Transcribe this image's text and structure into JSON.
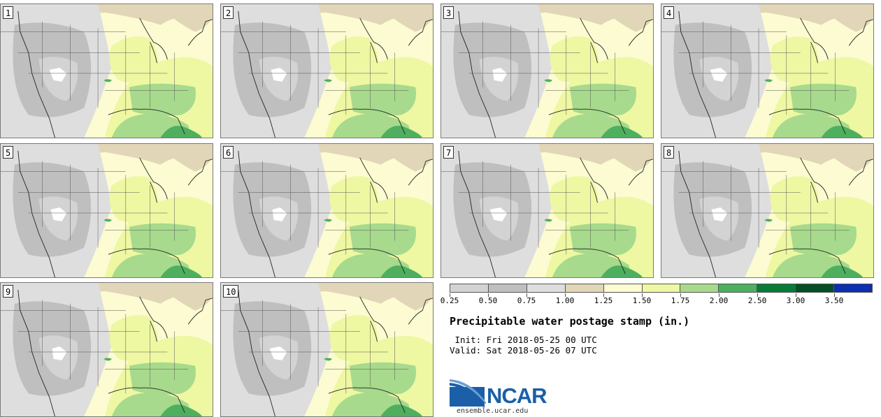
{
  "title": "Precipitable water postage stamp (in.)",
  "init_label": " Init: Fri 2018-05-25 00 UTC",
  "valid_label": "Valid: Sat 2018-05-26 07 UTC",
  "members": [
    {
      "label": "1"
    },
    {
      "label": "2"
    },
    {
      "label": "3"
    },
    {
      "label": "4"
    },
    {
      "label": "5"
    },
    {
      "label": "6"
    },
    {
      "label": "7"
    },
    {
      "label": "8"
    },
    {
      "label": "9"
    },
    {
      "label": "10"
    }
  ],
  "colorbar": {
    "tick_labels": [
      "0.25",
      "0.50",
      "0.75",
      "1.00",
      "1.25",
      "1.50",
      "1.75",
      "2.00",
      "2.50",
      "3.00",
      "3.50"
    ],
    "colors": [
      "#d3d3d3",
      "#bfbfbf",
      "#dedede",
      "#e1d6b8",
      "#fcfbd1",
      "#eef7a2",
      "#a7da8c",
      "#4eaf5f",
      "#087b36",
      "#064f25",
      "#0d2fb0"
    ]
  },
  "logo": {
    "text": "NCAR",
    "site": "ensemble.ucar.edu"
  }
}
